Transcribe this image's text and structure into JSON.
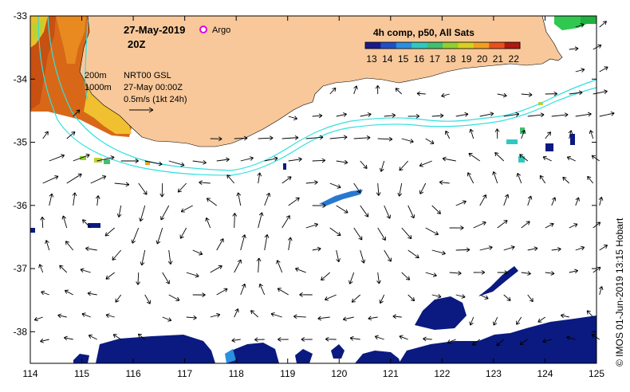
{
  "header": {
    "date": "27-May-2019",
    "hour": "20Z",
    "argo_label": "Argo",
    "argo_color": "#e000e0"
  },
  "legend": {
    "title": "4h comp, p50, All Sats",
    "ticks": [
      "13",
      "14",
      "15",
      "16",
      "17",
      "18",
      "19",
      "20",
      "21",
      "22"
    ],
    "colors": [
      "#1a1a8c",
      "#2050c8",
      "#2a90e0",
      "#30c8c0",
      "#40c070",
      "#90d030",
      "#d8d020",
      "#f0a020",
      "#e85020",
      "#b01810"
    ]
  },
  "annotations": {
    "isobath_1": "200m",
    "isobath_2": "1000m",
    "product": "NRT00 GSL",
    "valid": "27-May 00:00Z",
    "scale": "0.5m/s (1kt 24h)"
  },
  "credit": "© IMOS 01-Jun-2019 13:15 Hobart",
  "chart_data": {
    "type": "map",
    "x_ticks": [
      "114",
      "115",
      "116",
      "117",
      "118",
      "119",
      "120",
      "121",
      "122",
      "123",
      "124",
      "125"
    ],
    "y_ticks": [
      "-33",
      "-34",
      "-35",
      "-36",
      "-37",
      "-38"
    ],
    "xlim": [
      114,
      125
    ],
    "ylim": [
      -38.5,
      -33
    ],
    "colors": {
      "land": "#f8c89a",
      "isobath": "#30e0e0",
      "cold_sst": "#0a1a80",
      "warm_sst": "#e06010"
    }
  }
}
